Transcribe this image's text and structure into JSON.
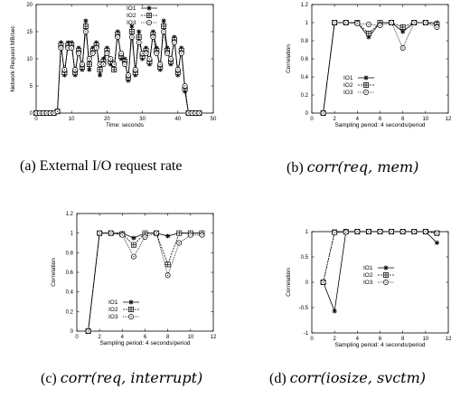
{
  "chart_data": [
    {
      "id": "a",
      "type": "line",
      "caption": "(a) External I/O request rate",
      "xlabel": "Time: seconds",
      "ylabel": "Network Request MB/sec",
      "xlim": [
        0,
        50
      ],
      "ylim": [
        0,
        20
      ],
      "xticks": [
        0,
        10,
        20,
        30,
        40,
        50
      ],
      "yticks": [
        0,
        5,
        10,
        15,
        20
      ],
      "legend_position": "top-right",
      "series": [
        {
          "name": "IO1",
          "x": [
            0,
            1,
            2,
            3,
            4,
            5,
            6,
            7,
            8,
            9,
            10,
            11,
            12,
            13,
            14,
            15,
            16,
            17,
            18,
            19,
            20,
            21,
            22,
            23,
            24,
            25,
            26,
            27,
            28,
            29,
            30,
            31,
            32,
            33,
            34,
            35,
            36,
            37,
            38,
            39,
            40,
            41,
            42,
            43,
            44,
            45,
            46
          ],
          "y": [
            0,
            0,
            0,
            0,
            0,
            0,
            0.3,
            13,
            7,
            13,
            13,
            7,
            12,
            8,
            17,
            8,
            12,
            13,
            7,
            10,
            12,
            9,
            8,
            15,
            10,
            10,
            6,
            16,
            7,
            15,
            10,
            12,
            9,
            15,
            12,
            8,
            17,
            12,
            9,
            14,
            7,
            12,
            4,
            0,
            0,
            0,
            0
          ]
        },
        {
          "name": "IO2",
          "x": [
            0,
            1,
            2,
            3,
            4,
            5,
            6,
            7,
            8,
            9,
            10,
            11,
            12,
            13,
            14,
            15,
            16,
            17,
            18,
            19,
            20,
            21,
            22,
            23,
            24,
            25,
            26,
            27,
            28,
            29,
            30,
            31,
            32,
            33,
            34,
            35,
            36,
            37,
            38,
            39,
            40,
            41,
            42,
            43,
            44,
            45,
            46
          ],
          "y": [
            0,
            0,
            0,
            0,
            0,
            0,
            0.3,
            12.5,
            7.5,
            12.5,
            12.5,
            7.5,
            11.5,
            8.5,
            16,
            9,
            11.5,
            12.5,
            8,
            9.5,
            11.5,
            9.5,
            8,
            14.5,
            10.5,
            9.5,
            6.5,
            15,
            7.5,
            14,
            10.5,
            11.5,
            9.5,
            14.5,
            11.5,
            8.5,
            16,
            11.5,
            9.5,
            13.5,
            7.5,
            11.5,
            4.5,
            0,
            0,
            0,
            0
          ]
        },
        {
          "name": "IO3",
          "x": [
            0,
            1,
            2,
            3,
            4,
            5,
            6,
            7,
            8,
            9,
            10,
            11,
            12,
            13,
            14,
            15,
            16,
            17,
            18,
            19,
            20,
            21,
            22,
            23,
            24,
            25,
            26,
            27,
            28,
            29,
            30,
            31,
            32,
            33,
            34,
            35,
            36,
            37,
            38,
            39,
            40,
            41,
            42,
            43,
            44,
            45,
            46
          ],
          "y": [
            0,
            0,
            0,
            0,
            0,
            0,
            0.3,
            12,
            8,
            12,
            12,
            8,
            11,
            9,
            15,
            10,
            11,
            12,
            9,
            9,
            11,
            10,
            9,
            14,
            11,
            9,
            7,
            14,
            8,
            13,
            11,
            11,
            10,
            14,
            11,
            9,
            15,
            11,
            10,
            13,
            8,
            11,
            5,
            0,
            0,
            0,
            0
          ]
        }
      ]
    },
    {
      "id": "b",
      "type": "line",
      "caption_prefix": "(b) ",
      "caption_math": "corr(req, mem)",
      "xlabel": "Sampling period: 4 seconds/period",
      "ylabel": "Correlation",
      "xlim": [
        0,
        12
      ],
      "ylim": [
        0,
        1.2
      ],
      "xticks": [
        0,
        2,
        4,
        6,
        8,
        10,
        12
      ],
      "yticks": [
        0,
        0.2,
        0.4,
        0.6,
        0.8,
        1,
        1.2
      ],
      "legend_position": "center-left",
      "x": [
        1,
        2,
        3,
        4,
        5,
        6,
        7,
        8,
        9,
        10,
        11
      ],
      "series": [
        {
          "name": "IO1",
          "values": [
            0,
            1,
            1,
            1,
            0.84,
            1,
            1,
            0.9,
            1,
            1,
            1
          ]
        },
        {
          "name": "IO2",
          "values": [
            0,
            1,
            1,
            1,
            0.88,
            1,
            1,
            0.95,
            1,
            1,
            0.98
          ]
        },
        {
          "name": "IO3",
          "values": [
            0,
            1,
            1,
            0.99,
            0.98,
            0.97,
            1,
            0.72,
            1,
            1,
            0.95
          ]
        }
      ]
    },
    {
      "id": "c",
      "type": "line",
      "caption_prefix": "(c) ",
      "caption_math": "corr(req, interrupt)",
      "xlabel": "Sampling period: 4 seconds/period",
      "ylabel": "Correlation",
      "xlim": [
        0,
        12
      ],
      "ylim": [
        0,
        1.2
      ],
      "xticks": [
        0,
        2,
        4,
        6,
        8,
        10,
        12
      ],
      "yticks": [
        0,
        0.2,
        0.4,
        0.6,
        0.8,
        1,
        1.2
      ],
      "legend_position": "center-left",
      "x": [
        1,
        2,
        3,
        4,
        5,
        6,
        7,
        8,
        9,
        10,
        11
      ],
      "series": [
        {
          "name": "IO1",
          "values": [
            0,
            1,
            1,
            1,
            0.95,
            1,
            1,
            0.97,
            1,
            1,
            1
          ]
        },
        {
          "name": "IO2",
          "values": [
            0,
            1,
            1,
            0.99,
            0.88,
            1,
            1,
            0.68,
            1,
            1,
            1
          ]
        },
        {
          "name": "IO3",
          "values": [
            0,
            1,
            1,
            0.98,
            0.76,
            0.96,
            1,
            0.57,
            0.9,
            0.98,
            0.98
          ]
        }
      ]
    },
    {
      "id": "d",
      "type": "line",
      "caption_prefix": "(d) ",
      "caption_math": "corr(iosize, svctm)",
      "xlabel": "Sampling period: 4 seconds/period",
      "ylabel": "Correlation",
      "xlim": [
        0,
        12
      ],
      "ylim": [
        -1,
        1
      ],
      "xticks": [
        0,
        2,
        4,
        6,
        8,
        10,
        12
      ],
      "yticks": [
        -1,
        -0.5,
        0,
        0.5,
        1
      ],
      "legend_position": "center-right",
      "x": [
        1,
        2,
        3,
        4,
        5,
        6,
        7,
        8,
        9,
        10,
        11
      ],
      "series": [
        {
          "name": "IO1",
          "values": [
            0,
            -0.57,
            1,
            1,
            1,
            1,
            1,
            1,
            1,
            1,
            0.78
          ]
        },
        {
          "name": "IO2",
          "values": [
            0,
            0.99,
            1,
            1,
            1,
            1,
            1,
            1,
            1,
            1,
            0.97
          ]
        },
        {
          "name": "IO3",
          "values": [
            0,
            0.98,
            0.99,
            1,
            1,
            1,
            1,
            1,
            1,
            1,
            0.97
          ]
        }
      ]
    }
  ]
}
